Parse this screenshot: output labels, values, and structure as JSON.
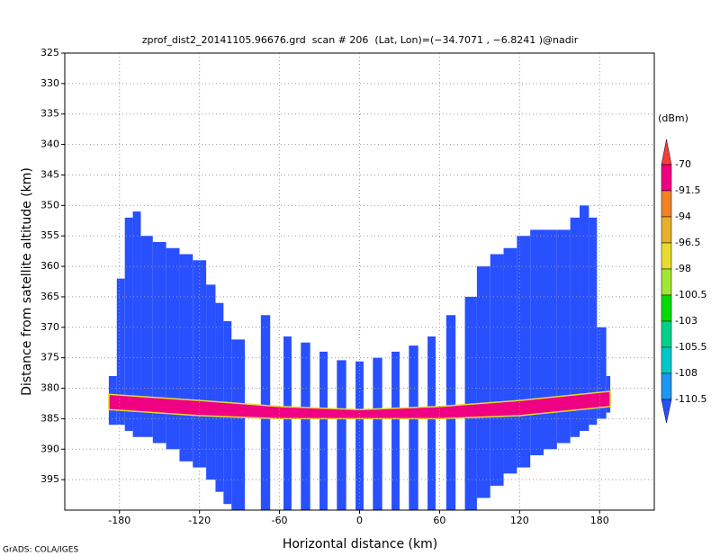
{
  "chart_data": {
    "type": "profile",
    "title": "zprof_dist2_20141105.96676.grd  scan # 206  (Lat, Lon)=(−34.7071 , −6.8241 )@nadir",
    "x_label": "Horizontal distance (km)",
    "y_label": "Distance from satellite altitude (km)",
    "credit": "GrADS: COLA/IGES",
    "xlim": [
      -221,
      221
    ],
    "ylim": [
      400,
      325
    ],
    "xticks": [
      -180,
      -120,
      -60,
      0,
      60,
      120,
      180
    ],
    "yticks": [
      325,
      330,
      335,
      340,
      345,
      350,
      355,
      360,
      365,
      370,
      375,
      380,
      385,
      390,
      395
    ],
    "grid": true,
    "colorbar": {
      "unit": "(dBm)",
      "levels": [
        -70,
        -91.5,
        -94,
        -96.5,
        -98,
        -100.5,
        -103,
        -105.5,
        -108,
        -110.5
      ],
      "colors": [
        "#fa3c3c",
        "#f00082",
        "#f08228",
        "#e6af2d",
        "#e6dc32",
        "#a0e632",
        "#00dc00",
        "#00d28c",
        "#00c8c8",
        "#1e96f0",
        "#2850ff"
      ]
    },
    "columns": [
      {
        "x0": -188,
        "x1": -182,
        "top": 378,
        "bottom": 386
      },
      {
        "x0": -182,
        "x1": -176,
        "top": 362,
        "bottom": 386
      },
      {
        "x0": -176,
        "x1": -170,
        "top": 352,
        "bottom": 387
      },
      {
        "x0": -170,
        "x1": -164,
        "top": 351,
        "bottom": 388
      },
      {
        "x0": -164,
        "x1": -155,
        "top": 355,
        "bottom": 388
      },
      {
        "x0": -155,
        "x1": -145,
        "top": 356,
        "bottom": 389
      },
      {
        "x0": -145,
        "x1": -135,
        "top": 357,
        "bottom": 390
      },
      {
        "x0": -135,
        "x1": -125,
        "top": 358,
        "bottom": 392
      },
      {
        "x0": -125,
        "x1": -115,
        "top": 359,
        "bottom": 393
      },
      {
        "x0": -115,
        "x1": -108,
        "top": 363,
        "bottom": 395
      },
      {
        "x0": -108,
        "x1": -102,
        "top": 366,
        "bottom": 397
      },
      {
        "x0": -102,
        "x1": -96,
        "top": 369,
        "bottom": 399
      },
      {
        "x0": -96,
        "x1": -86,
        "top": 372,
        "bottom": 400
      },
      {
        "x0": -74,
        "x1": -67,
        "top": 368,
        "bottom": 400
      },
      {
        "x0": -57,
        "x1": -51,
        "top": 371.5,
        "bottom": 400
      },
      {
        "x0": -44,
        "x1": -37,
        "top": 372.5,
        "bottom": 400
      },
      {
        "x0": -30,
        "x1": -24,
        "top": 374,
        "bottom": 400
      },
      {
        "x0": -17,
        "x1": -10,
        "top": 375.4,
        "bottom": 400
      },
      {
        "x0": -3,
        "x1": 3,
        "top": 375.6,
        "bottom": 400
      },
      {
        "x0": 10,
        "x1": 17,
        "top": 375,
        "bottom": 400
      },
      {
        "x0": 24,
        "x1": 30,
        "top": 374,
        "bottom": 400
      },
      {
        "x0": 37,
        "x1": 44,
        "top": 373,
        "bottom": 400
      },
      {
        "x0": 51,
        "x1": 57,
        "top": 371.5,
        "bottom": 400
      },
      {
        "x0": 65,
        "x1": 72,
        "top": 368,
        "bottom": 400
      },
      {
        "x0": 79,
        "x1": 88,
        "top": 365,
        "bottom": 400
      },
      {
        "x0": 88,
        "x1": 98,
        "top": 360,
        "bottom": 398
      },
      {
        "x0": 98,
        "x1": 108,
        "top": 358,
        "bottom": 396
      },
      {
        "x0": 108,
        "x1": 118,
        "top": 357,
        "bottom": 394
      },
      {
        "x0": 118,
        "x1": 128,
        "top": 355,
        "bottom": 393
      },
      {
        "x0": 128,
        "x1": 138,
        "top": 354,
        "bottom": 391
      },
      {
        "x0": 138,
        "x1": 148,
        "top": 354,
        "bottom": 390
      },
      {
        "x0": 148,
        "x1": 158,
        "top": 354,
        "bottom": 389
      },
      {
        "x0": 158,
        "x1": 165,
        "top": 352,
        "bottom": 388
      },
      {
        "x0": 165,
        "x1": 172,
        "top": 350,
        "bottom": 387
      },
      {
        "x0": 172,
        "x1": 178,
        "top": 352,
        "bottom": 386
      },
      {
        "x0": 178,
        "x1": 185,
        "top": 370,
        "bottom": 385
      },
      {
        "x0": 185,
        "x1": 188,
        "top": 378,
        "bottom": 384
      }
    ],
    "surface": {
      "x": [
        -188,
        -120,
        -60,
        0,
        60,
        120,
        188
      ],
      "top": [
        381,
        382,
        383,
        383.5,
        383,
        382,
        380.5
      ],
      "bottom": [
        383.5,
        384.5,
        385,
        385,
        385,
        384.5,
        383
      ]
    }
  }
}
